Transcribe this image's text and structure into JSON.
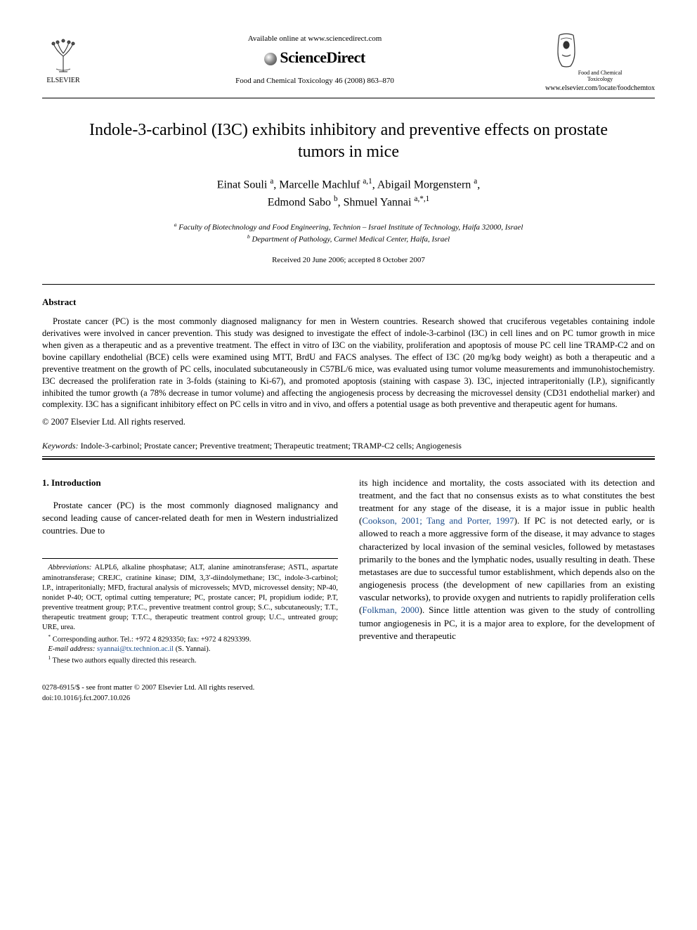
{
  "header": {
    "elsevier_label": "ELSEVIER",
    "available_online": "Available online at www.sciencedirect.com",
    "sciencedirect": "ScienceDirect",
    "journal_ref": "Food and Chemical Toxicology 46 (2008) 863–870",
    "fct_top": "Food and Chemical",
    "fct_bottom": "Toxicology",
    "journal_url": "www.elsevier.com/locate/foodchemtox"
  },
  "title": "Indole-3-carbinol (I3C) exhibits inhibitory and preventive effects on prostate tumors in mice",
  "authors_html": "Einat Souli <span class='sup'>a</span>, Marcelle Machluf <span class='sup'>a,1</span>, Abigail Morgenstern <span class='sup'>a</span>,<br>Edmond Sabo <span class='sup'>b</span>, Shmuel Yannai <span class='sup'>a,*,1</span>",
  "affiliations": {
    "a": "Faculty of Biotechnology and Food Engineering, Technion – Israel Institute of Technology, Haifa 32000, Israel",
    "b": "Department of Pathology, Carmel Medical Center, Haifa, Israel"
  },
  "dates": "Received 20 June 2006; accepted 8 October 2007",
  "abstract": {
    "heading": "Abstract",
    "body": "Prostate cancer (PC) is the most commonly diagnosed malignancy for men in Western countries. Research showed that cruciferous vegetables containing indole derivatives were involved in cancer prevention. This study was designed to investigate the effect of indole-3-carbinol (I3C) in cell lines and on PC tumor growth in mice when given as a therapeutic and as a preventive treatment. The effect in vitro of I3C on the viability, proliferation and apoptosis of mouse PC cell line TRAMP-C2 and on bovine capillary endothelial (BCE) cells were examined using MTT, BrdU and FACS analyses. The effect of I3C (20 mg/kg body weight) as both a therapeutic and a preventive treatment on the growth of PC cells, inoculated subcutaneously in C57BL/6 mice, was evaluated using tumor volume measurements and immunohistochemistry. I3C decreased the proliferation rate in 3-folds (staining to Ki-67), and promoted apoptosis (staining with caspase 3). I3C, injected intraperitonially (I.P.), significantly inhibited the tumor growth (a 78% decrease in tumor volume) and affecting the angiogenesis process by decreasing the microvessel density (CD31 endothelial marker) and complexity. I3C has a significant inhibitory effect on PC cells in vitro and in vivo, and offers a potential usage as both preventive and therapeutic agent for humans.",
    "copyright": "© 2007 Elsevier Ltd. All rights reserved."
  },
  "keywords": {
    "label": "Keywords:",
    "text": "Indole-3-carbinol; Prostate cancer; Preventive treatment; Therapeutic treatment; TRAMP-C2 cells; Angiogenesis"
  },
  "section1": {
    "heading": "1. Introduction",
    "left_para": "Prostate cancer (PC) is the most commonly diagnosed malignancy and second leading cause of cancer-related death for men in Western industrialized countries. Due to",
    "right_para_1": "its high incidence and mortality, the costs associated with its detection and treatment, and the fact that no consensus exists as to what constitutes the best treatment for any stage of the disease, it is a major issue in public health (",
    "right_cite_1": "Cookson, 2001; Tang and Porter, 1997",
    "right_para_2": "). If PC is not detected early, or is allowed to reach a more aggressive form of the disease, it may advance to stages characterized by local invasion of the seminal vesicles, followed by metastases primarily to the bones and the lymphatic nodes, usually resulting in death. These metastases are due to successful tumor establishment, which depends also on the angiogenesis process (the development of new capillaries from an existing vascular networks), to provide oxygen and nutrients to rapidly proliferation cells (",
    "right_cite_2": "Folkman, 2000",
    "right_para_3": "). Since little attention was given to the study of controlling tumor angiogenesis in PC, it is a major area to explore, for the development of preventive and therapeutic"
  },
  "footnotes": {
    "abbrev_label": "Abbreviations:",
    "abbrev_text": "ALPL6, alkaline phosphatase; ALT, alanine aminotransferase; ASTL, aspartate aminotransferase; CREJC, cratinine kinase; DIM, 3,3′-diindolymethane; I3C, indole-3-carbinol; I.P., intraperitonially; MFD, fractural analysis of microvessels; MVD, microvessel density; NP-40, nonidet P-40; OCT, optimal cutting temperature; PC, prostate cancer; PI, propidium iodide; P.T, preventive treatment group; P.T.C., preventive treatment control group; S.C., subcutaneously; T.T., therapeutic treatment group; T.T.C., therapeutic treatment control group; U.C., untreated group; URE, urea.",
    "corresponding": "Corresponding author. Tel.: +972 4 8293350; fax: +972 4 8293399.",
    "email_label": "E-mail address:",
    "email": "syannai@tx.technion.ac.il",
    "email_tail": " (S. Yannai).",
    "note1": "These two authors equally directed this research."
  },
  "footer": {
    "front_matter": "0278-6915/$ - see front matter © 2007 Elsevier Ltd. All rights reserved.",
    "doi": "doi:10.1016/j.fct.2007.10.026"
  },
  "colors": {
    "text": "#000000",
    "background": "#ffffff",
    "link": "#1a4b8b"
  }
}
